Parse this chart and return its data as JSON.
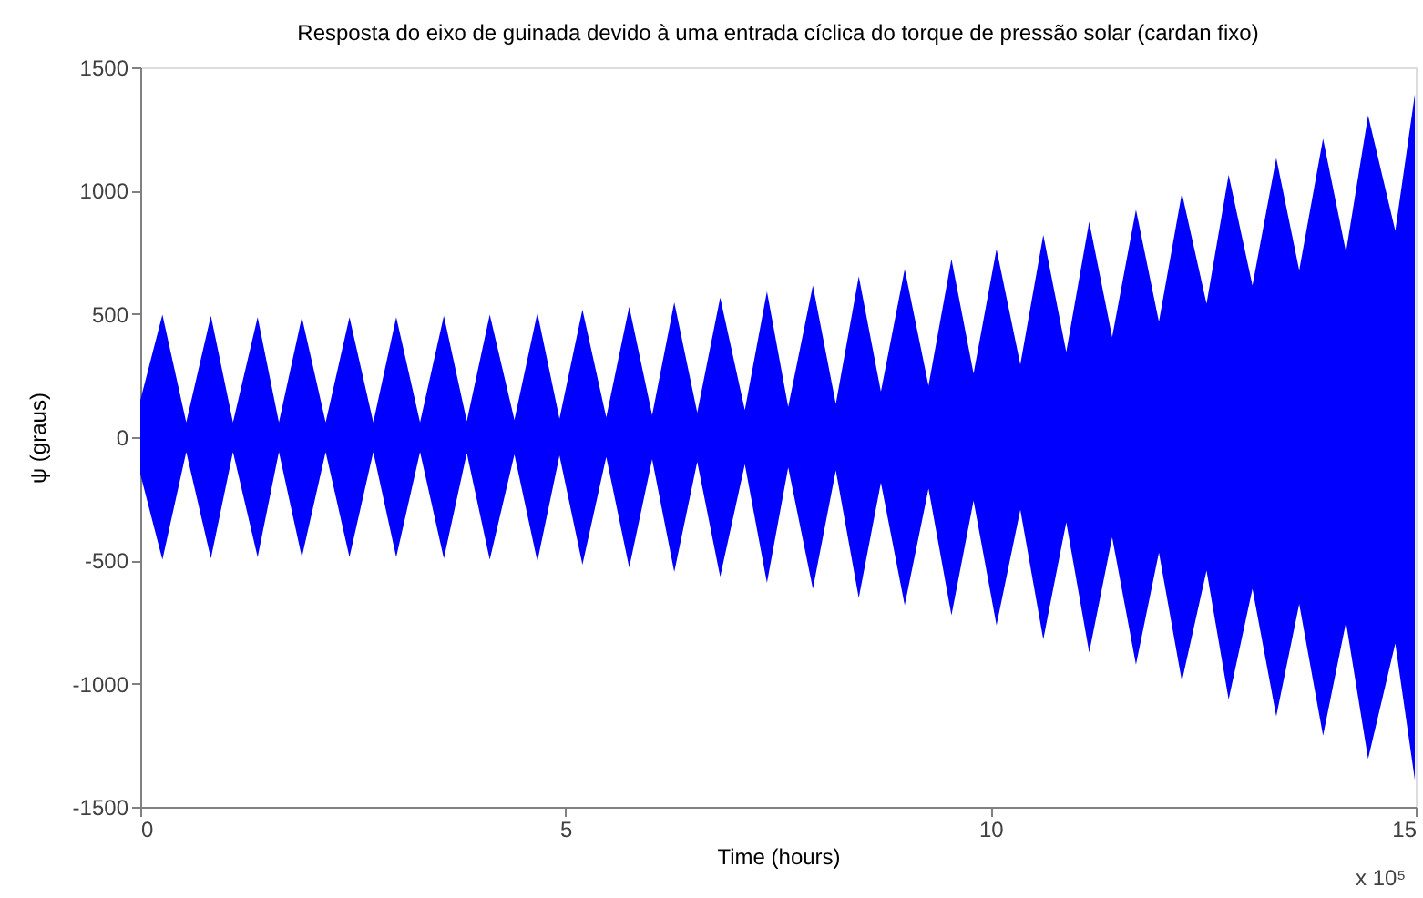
{
  "chart_data": {
    "type": "area",
    "title": "Resposta do eixo de guinada devido à uma entrada cíclica do torque de pressão solar (cardan fixo)",
    "xlabel": "Time (hours)",
    "ylabel": "ψ (graus)",
    "annotations": [
      "x 10⁵"
    ],
    "x": [
      0,
      0.26,
      0.54,
      0.83,
      1.09,
      1.38,
      1.63,
      1.9,
      2.18,
      2.46,
      2.74,
      3.01,
      3.29,
      3.57,
      3.84,
      4.11,
      4.4,
      4.67,
      4.93,
      5.2,
      5.48,
      5.75,
      6.02,
      6.28,
      6.55,
      6.82,
      7.11,
      7.37,
      7.62,
      7.91,
      8.18,
      8.45,
      8.71,
      8.99,
      9.27,
      9.54,
      9.8,
      10.07,
      10.35,
      10.62,
      10.89,
      11.16,
      11.43,
      11.71,
      11.98,
      12.25,
      12.54,
      12.8,
      13.08,
      13.36,
      13.63,
      13.91,
      14.18,
      14.44,
      14.76,
      14.99
    ],
    "series": [
      {
        "color": "#0000ff",
        "values": [
          150,
          497,
          60,
          492,
          60,
          487,
          60,
          487,
          60,
          487,
          60,
          487,
          60,
          492,
          65,
          497,
          70,
          504,
          75,
          517,
          80,
          529,
          90,
          547,
          100,
          566,
          110,
          591,
          123,
          615,
          135,
          652,
          185,
          682,
          209,
          722,
          258,
          763,
          295,
          820,
          345,
          874,
          406,
          923,
          468,
          990,
          541,
          1064,
          615,
          1132,
          677,
          1211,
          751,
          1305,
          837,
          1391
        ]
      },
      {
        "color": "#0000ff",
        "values": [
          -150,
          -497,
          -60,
          -492,
          -60,
          -487,
          -60,
          -487,
          -60,
          -487,
          -60,
          -487,
          -60,
          -492,
          -65,
          -497,
          -70,
          -504,
          -75,
          -517,
          -80,
          -529,
          -90,
          -547,
          -100,
          -566,
          -110,
          -591,
          -123,
          -615,
          -135,
          -652,
          -185,
          -682,
          -209,
          -722,
          -258,
          -763,
          -295,
          -820,
          -345,
          -874,
          -406,
          -923,
          -468,
          -990,
          -541,
          -1064,
          -615,
          -1132,
          -677,
          -1211,
          -751,
          -1305,
          -837,
          -1391
        ]
      }
    ],
    "xlim": [
      0,
      15
    ],
    "xticks": [
      0,
      5,
      10,
      15
    ],
    "ylim": [
      -1500,
      1500
    ],
    "yticks": [
      -1500,
      -1000,
      -500,
      0,
      500,
      1000,
      1500
    ]
  }
}
